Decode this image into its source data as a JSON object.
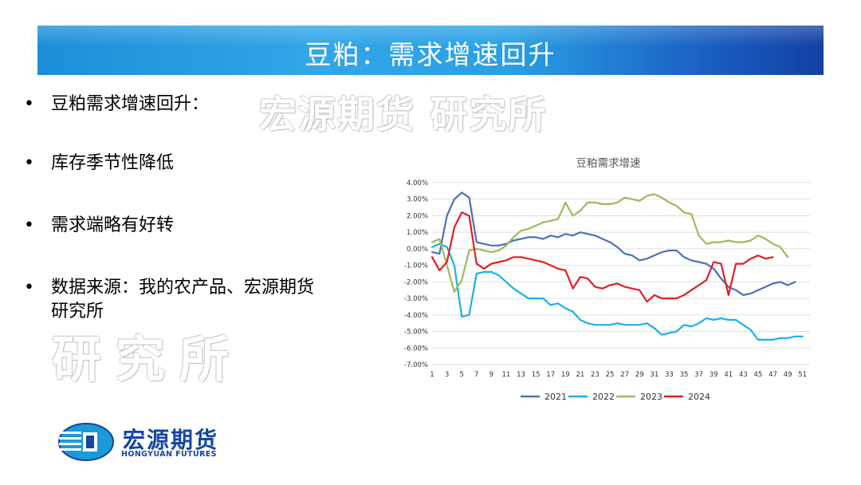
{
  "header": {
    "title": "豆粕：需求增速回升"
  },
  "watermarks": [
    "宏源期货 研究所",
    "研究所"
  ],
  "bullets": [
    {
      "marker": "•",
      "text": "豆粕需求增速回升："
    },
    {
      "marker": "•",
      "text": "库存季节性降低"
    },
    {
      "marker": "•",
      "text": "需求端略有好转"
    },
    {
      "marker": "•",
      "text": "数据来源：我的农产品、宏源期货研究所"
    }
  ],
  "logo": {
    "cn": "宏源期货",
    "en": "HONGYUAN FUTURES",
    "icon": "hongyuan-logo-icon"
  },
  "chart_data": {
    "type": "line",
    "title": "豆粕需求增速",
    "xlabel": "",
    "ylabel": "",
    "x": [
      1,
      2,
      3,
      4,
      5,
      6,
      7,
      8,
      9,
      10,
      11,
      12,
      13,
      14,
      15,
      16,
      17,
      18,
      19,
      20,
      21,
      22,
      23,
      24,
      25,
      26,
      27,
      28,
      29,
      30,
      31,
      32,
      33,
      34,
      35,
      36,
      37,
      38,
      39,
      40,
      41,
      42,
      43,
      44,
      45,
      46,
      47,
      48,
      49,
      50,
      51,
      52
    ],
    "x_tick_labels": [
      "1",
      "3",
      "5",
      "7",
      "9",
      "11",
      "13",
      "15",
      "17",
      "19",
      "21",
      "23",
      "25",
      "27",
      "29",
      "31",
      "33",
      "35",
      "37",
      "39",
      "41",
      "43",
      "45",
      "47",
      "49",
      "51"
    ],
    "ylim": [
      -0.07,
      0.04
    ],
    "y_tick_labels": [
      "4.00%",
      "3.00%",
      "2.00%",
      "1.00%",
      "0.00%",
      "-1.00%",
      "-2.00%",
      "-3.00%",
      "-4.00%",
      "-5.00%",
      "-6.00%",
      "-7.00%"
    ],
    "grid": true,
    "legend_position": "bottom",
    "series": [
      {
        "name": "2021",
        "color": "#4a72b8",
        "values": [
          -0.002,
          -0.003,
          0.02,
          0.03,
          0.034,
          0.031,
          0.004,
          0.003,
          0.002,
          0.002,
          0.003,
          0.005,
          0.006,
          0.007,
          0.007,
          0.006,
          0.008,
          0.007,
          0.009,
          0.008,
          0.01,
          0.009,
          0.008,
          0.006,
          0.004,
          0.001,
          -0.003,
          -0.004,
          -0.007,
          -0.006,
          -0.004,
          -0.002,
          -0.001,
          -0.001,
          -0.005,
          -0.007,
          -0.008,
          -0.009,
          -0.012,
          -0.018,
          -0.023,
          -0.025,
          -0.028,
          -0.027,
          -0.025,
          -0.023,
          -0.021,
          -0.02,
          -0.022,
          -0.02,
          null,
          null
        ]
      },
      {
        "name": "2022",
        "color": "#1ab0ea",
        "values": [
          0.001,
          0.003,
          0.001,
          -0.01,
          -0.041,
          -0.04,
          -0.015,
          -0.014,
          -0.014,
          -0.016,
          -0.02,
          -0.024,
          -0.027,
          -0.03,
          -0.03,
          -0.03,
          -0.034,
          -0.033,
          -0.036,
          -0.038,
          -0.043,
          -0.045,
          -0.046,
          -0.046,
          -0.046,
          -0.045,
          -0.046,
          -0.046,
          -0.046,
          -0.045,
          -0.048,
          -0.052,
          -0.051,
          -0.05,
          -0.046,
          -0.047,
          -0.045,
          -0.042,
          -0.043,
          -0.042,
          -0.043,
          -0.043,
          -0.046,
          -0.049,
          -0.055,
          -0.055,
          -0.055,
          -0.054,
          -0.054,
          -0.053,
          -0.053,
          null
        ]
      },
      {
        "name": "2023",
        "color": "#9bbb59",
        "values": [
          0.004,
          0.006,
          -0.01,
          -0.026,
          -0.019,
          -0.001,
          0.0,
          -0.001,
          -0.002,
          -0.001,
          0.002,
          0.007,
          0.011,
          0.012,
          0.014,
          0.016,
          0.017,
          0.018,
          0.028,
          0.02,
          0.023,
          0.028,
          0.028,
          0.027,
          0.027,
          0.028,
          0.031,
          0.03,
          0.029,
          0.032,
          0.033,
          0.031,
          0.028,
          0.026,
          0.022,
          0.021,
          0.008,
          0.003,
          0.004,
          0.004,
          0.005,
          0.004,
          0.004,
          0.005,
          0.008,
          0.006,
          0.003,
          0.001,
          -0.005,
          null,
          null,
          null
        ]
      },
      {
        "name": "2024",
        "color": "#e31e24",
        "values": [
          -0.005,
          -0.013,
          -0.008,
          0.013,
          0.022,
          0.02,
          -0.009,
          -0.012,
          -0.009,
          -0.008,
          -0.007,
          -0.005,
          -0.005,
          -0.006,
          -0.007,
          -0.008,
          -0.01,
          -0.012,
          -0.013,
          -0.024,
          -0.017,
          -0.018,
          -0.023,
          -0.024,
          -0.022,
          -0.021,
          -0.023,
          -0.024,
          -0.025,
          -0.032,
          -0.028,
          -0.03,
          -0.03,
          -0.03,
          -0.028,
          -0.025,
          -0.022,
          -0.019,
          -0.008,
          -0.009,
          -0.028,
          -0.009,
          -0.009,
          -0.006,
          -0.004,
          -0.006,
          -0.005,
          null,
          null,
          null,
          null,
          null
        ]
      }
    ]
  }
}
